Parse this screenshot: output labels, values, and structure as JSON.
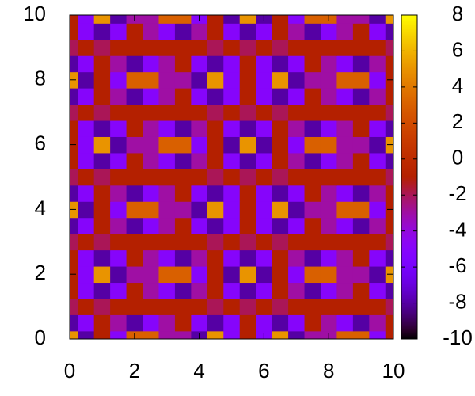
{
  "chart_data": {
    "type": "heatmap",
    "colormap": "gnuplot",
    "x": [
      0,
      0.5,
      1,
      1.5,
      2,
      2.5,
      3,
      3.5,
      4,
      4.5,
      5,
      5.5,
      6,
      6.5,
      7,
      7.5,
      8,
      8.5,
      9,
      9.5,
      10
    ],
    "y": [
      0,
      0.5,
      1,
      1.5,
      2,
      2.5,
      3,
      3.5,
      4,
      4.5,
      5,
      5.5,
      6,
      6.5,
      7,
      7.5,
      8,
      8.5,
      9,
      9.5,
      10
    ],
    "z": [
      [
        5,
        -8,
        -1,
        -5,
        3,
        3,
        -3,
        -3,
        -8,
        5,
        -5,
        -1,
        -5,
        5,
        -8,
        -3,
        -3,
        3,
        3,
        -5,
        -1
      ],
      [
        -8,
        -5,
        -1,
        -3,
        -8,
        -5,
        -3,
        -1,
        -5,
        -8,
        -5,
        -1,
        -5,
        -8,
        -5,
        -1,
        -3,
        -5,
        -8,
        -3,
        -1
      ],
      [
        -2,
        -1,
        -2,
        -1,
        -1,
        -1,
        -1,
        -1,
        -1,
        -2,
        -1,
        -2,
        -1,
        -2,
        -1,
        -1,
        -1,
        -1,
        -1,
        -1,
        -2
      ],
      [
        -1,
        -5,
        -8,
        -5,
        -1,
        -3,
        -5,
        -8,
        -3,
        -1,
        -5,
        -8,
        -5,
        -1,
        -3,
        -8,
        -5,
        -3,
        -1,
        -5,
        -8
      ],
      [
        -1,
        -5,
        5,
        -8,
        -3,
        -3,
        3,
        3,
        -5,
        -1,
        -8,
        5,
        -8,
        -1,
        -5,
        3,
        3,
        -3,
        -3,
        -8,
        5
      ],
      [
        -1,
        -5,
        -8,
        -5,
        -1,
        -3,
        -5,
        -8,
        -3,
        -1,
        -5,
        -8,
        -5,
        -1,
        -3,
        -8,
        -5,
        -3,
        -1,
        -5,
        -8
      ],
      [
        -2,
        -1,
        -2,
        -1,
        -1,
        -1,
        -1,
        -1,
        -1,
        -2,
        -1,
        -2,
        -1,
        -2,
        -1,
        -1,
        -1,
        -1,
        -1,
        -1,
        -2
      ],
      [
        -8,
        -5,
        -1,
        -3,
        -8,
        -5,
        -3,
        -1,
        -5,
        -8,
        -5,
        -1,
        -5,
        -8,
        -5,
        -1,
        -3,
        -5,
        -8,
        -3,
        -1
      ],
      [
        5,
        -8,
        -1,
        -5,
        3,
        3,
        -3,
        -3,
        -8,
        5,
        -5,
        -1,
        -5,
        5,
        -8,
        -3,
        -3,
        3,
        3,
        -5,
        -1
      ],
      [
        -8,
        -5,
        -1,
        -3,
        -8,
        -5,
        -3,
        -1,
        -5,
        -8,
        -5,
        -1,
        -5,
        -8,
        -5,
        -1,
        -3,
        -5,
        -8,
        -3,
        -1
      ],
      [
        -2,
        -1,
        -2,
        -1,
        -1,
        -1,
        -1,
        -1,
        -1,
        -2,
        -1,
        -2,
        -1,
        -2,
        -1,
        -1,
        -1,
        -1,
        -1,
        -1,
        -2
      ],
      [
        -1,
        -5,
        -8,
        -5,
        -1,
        -3,
        -5,
        -8,
        -3,
        -1,
        -5,
        -8,
        -5,
        -1,
        -3,
        -8,
        -5,
        -3,
        -1,
        -5,
        -8
      ],
      [
        -1,
        -5,
        5,
        -8,
        -3,
        -3,
        3,
        3,
        -5,
        -1,
        -8,
        5,
        -8,
        -1,
        -5,
        3,
        3,
        -3,
        -3,
        -8,
        5
      ],
      [
        -1,
        -5,
        -8,
        -5,
        -1,
        -3,
        -5,
        -8,
        -3,
        -1,
        -5,
        -8,
        -5,
        -1,
        -3,
        -8,
        -5,
        -3,
        -1,
        -5,
        -8
      ],
      [
        -2,
        -1,
        -2,
        -1,
        -1,
        -1,
        -1,
        -1,
        -1,
        -2,
        -1,
        -2,
        -1,
        -2,
        -1,
        -1,
        -1,
        -1,
        -1,
        -1,
        -2
      ],
      [
        -8,
        -5,
        -1,
        -3,
        -8,
        -5,
        -3,
        -1,
        -5,
        -8,
        -5,
        -1,
        -5,
        -8,
        -5,
        -1,
        -3,
        -5,
        -8,
        -3,
        -1
      ],
      [
        5,
        -8,
        -1,
        -5,
        3,
        3,
        -3,
        -3,
        -8,
        5,
        -5,
        -1,
        -5,
        5,
        -8,
        -3,
        -3,
        3,
        3,
        -5,
        -1
      ],
      [
        -8,
        -5,
        -1,
        -3,
        -8,
        -5,
        -3,
        -1,
        -5,
        -8,
        -5,
        -1,
        -5,
        -8,
        -5,
        -1,
        -3,
        -5,
        -8,
        -3,
        -1
      ],
      [
        -2,
        -1,
        -2,
        -1,
        -1,
        -1,
        -1,
        -1,
        -1,
        -2,
        -1,
        -2,
        -1,
        -2,
        -1,
        -1,
        -1,
        -1,
        -1,
        -1,
        -2
      ],
      [
        -1,
        -5,
        -8,
        -5,
        -1,
        -3,
        -5,
        -8,
        -3,
        -1,
        -5,
        -8,
        -5,
        -1,
        -3,
        -8,
        -5,
        -3,
        -1,
        -5,
        -8
      ],
      [
        -1,
        -5,
        5,
        -8,
        -3,
        -3,
        3,
        3,
        -5,
        -1,
        -8,
        5,
        -8,
        -1,
        -5,
        3,
        3,
        -3,
        -3,
        -8,
        5
      ]
    ],
    "xlim": [
      0,
      10
    ],
    "ylim": [
      0,
      10
    ],
    "xticks": [
      0,
      2,
      4,
      6,
      8,
      10
    ],
    "yticks": [
      0,
      2,
      4,
      6,
      8,
      10
    ],
    "zlim": [
      -10,
      8
    ],
    "zticks": [
      -10,
      -8,
      -6,
      -4,
      -2,
      0,
      2,
      4,
      6,
      8
    ]
  }
}
